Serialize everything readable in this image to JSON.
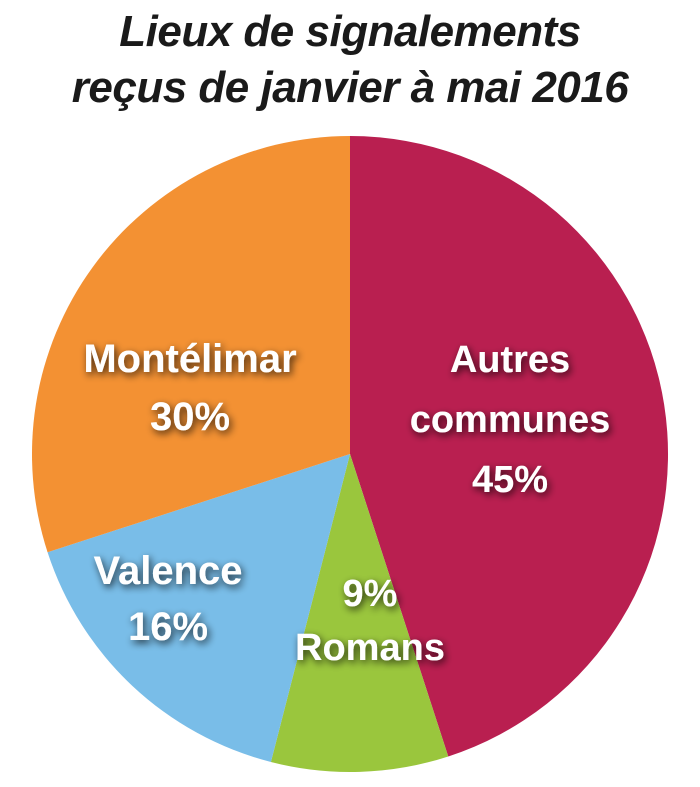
{
  "chart_data": {
    "type": "pie",
    "title_lines": [
      "Lieux de signalements",
      "reçus de janvier à mai 2016"
    ],
    "slices": [
      {
        "name": "Autres communes",
        "label_lines": [
          "Autres",
          "communes"
        ],
        "value": 45,
        "value_label": "45%",
        "color": "#b91f50"
      },
      {
        "name": "Romans",
        "label_lines": [
          "Romans"
        ],
        "value": 9,
        "value_label": "9%",
        "color": "#9ac63d"
      },
      {
        "name": "Valence",
        "label_lines": [
          "Valence"
        ],
        "value": 16,
        "value_label": "16%",
        "color": "#79bde8"
      },
      {
        "name": "Montélimar",
        "label_lines": [
          "Montélimar"
        ],
        "value": 30,
        "value_label": "30%",
        "color": "#f39133"
      }
    ]
  }
}
